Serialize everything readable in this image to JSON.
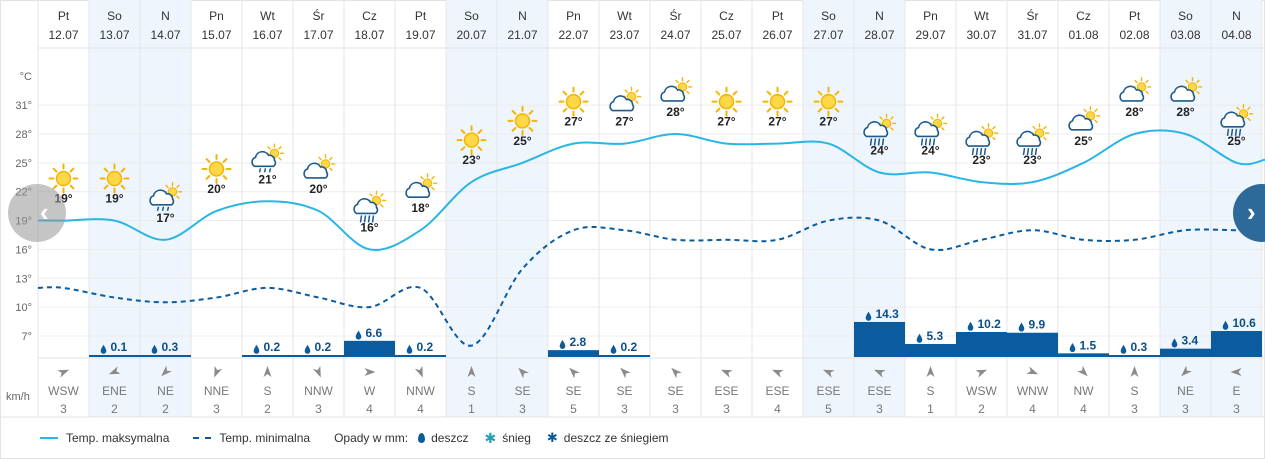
{
  "axis": {
    "temp_unit": "°C",
    "wind_unit": "km/h",
    "yticks": [
      "31°",
      "28°",
      "25°",
      "22°",
      "19°",
      "16°",
      "13°",
      "10°",
      "7°"
    ]
  },
  "legend": {
    "max_label": "Temp. maksymalna",
    "min_label": "Temp. minimalna",
    "precip_label": "Opady w mm:",
    "rain_label": "deszcz",
    "snow_label": "śnieg",
    "mix_label": "deszcz ze śniegiem"
  },
  "colors": {
    "max_line": "#29b6e5",
    "min_line": "#0a5c9f",
    "precip_bar": "#0a5c9f",
    "weekend_bg": "#eef5fc"
  },
  "chart_data": {
    "type": "line",
    "categories": [
      "12.07",
      "13.07",
      "14.07",
      "15.07",
      "16.07",
      "17.07",
      "18.07",
      "19.07",
      "20.07",
      "21.07",
      "22.07",
      "23.07",
      "24.07",
      "25.07",
      "26.07",
      "27.07",
      "28.07",
      "29.07",
      "30.07",
      "31.07",
      "01.08",
      "02.08",
      "03.08",
      "04.08"
    ],
    "weekdays": [
      "Pt",
      "So",
      "N",
      "Pn",
      "Wt",
      "Śr",
      "Cz",
      "Pt",
      "So",
      "N",
      "Pn",
      "Wt",
      "Śr",
      "Cz",
      "Pt",
      "So",
      "N",
      "Pn",
      "Wt",
      "Śr",
      "Cz",
      "Pt",
      "So",
      "N"
    ],
    "weekend": [
      false,
      true,
      true,
      false,
      false,
      false,
      false,
      false,
      true,
      true,
      false,
      false,
      false,
      false,
      false,
      true,
      true,
      false,
      false,
      false,
      false,
      false,
      true,
      true
    ],
    "series": [
      {
        "name": "Temp. maksymalna",
        "values": [
          19,
          19,
          17,
          20,
          21,
          20,
          16,
          18,
          23,
          25,
          27,
          27,
          28,
          27,
          27,
          27,
          24,
          24,
          23,
          23,
          25,
          28,
          28,
          25
        ]
      },
      {
        "name": "Temp. minimalna",
        "values": [
          12,
          11,
          10.5,
          11,
          12,
          11,
          10,
          12,
          6,
          14,
          18,
          18,
          17,
          17,
          17,
          19,
          19,
          16,
          17,
          18,
          17,
          17,
          18,
          18
        ]
      }
    ],
    "precipitation": [
      null,
      0.1,
      0.3,
      null,
      0.2,
      0.2,
      6.6,
      0.2,
      null,
      null,
      2.8,
      0.2,
      null,
      null,
      null,
      null,
      14.3,
      5.3,
      10.2,
      9.9,
      1.5,
      0.3,
      3.4,
      10.6
    ],
    "weather_icons": [
      "sun",
      "sun",
      "partly-cloudy-rain",
      "sun",
      "partly-cloudy-rain",
      "partly-cloudy",
      "cloud-rain-sun",
      "partly-cloudy",
      "sun",
      "sun",
      "sun",
      "partly-cloudy",
      "partly-cloudy",
      "sun",
      "sun",
      "sun",
      "cloud-rain-sun",
      "cloud-rain-sun",
      "cloud-rain-sun",
      "cloud-rain-sun",
      "partly-cloudy",
      "partly-cloudy",
      "partly-cloudy",
      "cloud-rain-sun"
    ],
    "wind_direction": [
      "WSW",
      "ENE",
      "NE",
      "NNE",
      "S",
      "NNW",
      "W",
      "NNW",
      "S",
      "SE",
      "SE",
      "SE",
      "SE",
      "ESE",
      "ESE",
      "ESE",
      "ESE",
      "S",
      "WSW",
      "WNW",
      "NW",
      "S",
      "NE",
      "E"
    ],
    "wind_speed": [
      3,
      2,
      2,
      3,
      2,
      3,
      4,
      4,
      1,
      3,
      5,
      3,
      3,
      3,
      4,
      5,
      3,
      1,
      2,
      4,
      4,
      3,
      3,
      3
    ],
    "ylabel": "°C",
    "ylim": [
      4,
      34
    ],
    "grid": true
  }
}
